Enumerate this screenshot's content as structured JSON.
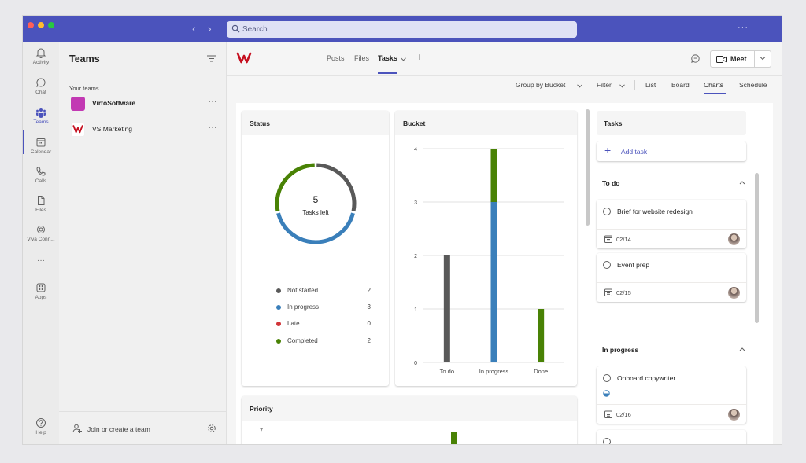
{
  "window": {
    "search_placeholder": "Search",
    "more": "···"
  },
  "rail": {
    "items": [
      {
        "label": "Activity",
        "icon": "bell-icon"
      },
      {
        "label": "Chat",
        "icon": "chat-icon"
      },
      {
        "label": "Teams",
        "icon": "teams-icon"
      },
      {
        "label": "Calendar",
        "icon": "calendar-icon"
      },
      {
        "label": "Calls",
        "icon": "phone-icon"
      },
      {
        "label": "Files",
        "icon": "file-icon"
      },
      {
        "label": "Viva Conn...",
        "icon": "viva-icon"
      },
      {
        "label": "···",
        "icon": "more-icon"
      },
      {
        "label": "Apps",
        "icon": "apps-icon"
      },
      {
        "label": "Help",
        "icon": "help-icon"
      }
    ],
    "active": "Teams"
  },
  "teams_panel": {
    "title": "Teams",
    "section_label": "Your teams",
    "teams": [
      {
        "name": "VirtoSoftware",
        "more": "···",
        "color": "#c239b3"
      },
      {
        "name": "VS Marketing",
        "more": "···",
        "color": "#ffffff"
      }
    ],
    "join_label": "Join or create a team"
  },
  "channel": {
    "tabs": [
      "Posts",
      "Files",
      "Tasks"
    ],
    "active_tab": "Tasks",
    "add_tab": "+",
    "meet_label": "Meet"
  },
  "toolbar": {
    "group_by": "Group by Bucket",
    "filter": "Filter",
    "views": [
      "List",
      "Board",
      "Charts",
      "Schedule"
    ],
    "active_view": "Charts"
  },
  "status_card": {
    "title": "Status",
    "center_count": "5",
    "center_label": "Tasks left",
    "legend": [
      {
        "label": "Not started",
        "count": "2",
        "color": "#595959"
      },
      {
        "label": "In progress",
        "count": "3",
        "color": "#3a7fba"
      },
      {
        "label": "Late",
        "count": "0",
        "color": "#d13438"
      },
      {
        "label": "Completed",
        "count": "2",
        "color": "#498205"
      }
    ]
  },
  "bucket_card": {
    "title": "Bucket"
  },
  "priority_card": {
    "title": "Priority",
    "visible_tick": "7"
  },
  "chart_data": {
    "type": "bar",
    "categories": [
      "To do",
      "In progress",
      "Done"
    ],
    "series": [
      {
        "values": [
          2,
          0,
          0
        ],
        "color": "#595959"
      },
      {
        "values": [
          0,
          3,
          0
        ],
        "color": "#3a7fba"
      },
      {
        "values": [
          0,
          1,
          1
        ],
        "color": "#498205"
      }
    ],
    "stacked": true,
    "yticks": [
      0,
      1,
      2,
      3,
      4
    ],
    "ylim": [
      0,
      4
    ],
    "grid": true,
    "donut": {
      "values": [
        2,
        3,
        0,
        2
      ],
      "colors": [
        "#595959",
        "#3a7fba",
        "#d13438",
        "#498205"
      ]
    }
  },
  "tasks_panel": {
    "title": "Tasks",
    "add_label": "Add task",
    "sections": [
      {
        "name": "To do",
        "tasks": [
          {
            "title": "Brief for website redesign",
            "due": "02/14"
          },
          {
            "title": "Event prep",
            "due": "02/15"
          }
        ]
      },
      {
        "name": "In progress",
        "tasks": [
          {
            "title": "Onboard copywriter",
            "due": "02/16"
          }
        ]
      }
    ]
  }
}
